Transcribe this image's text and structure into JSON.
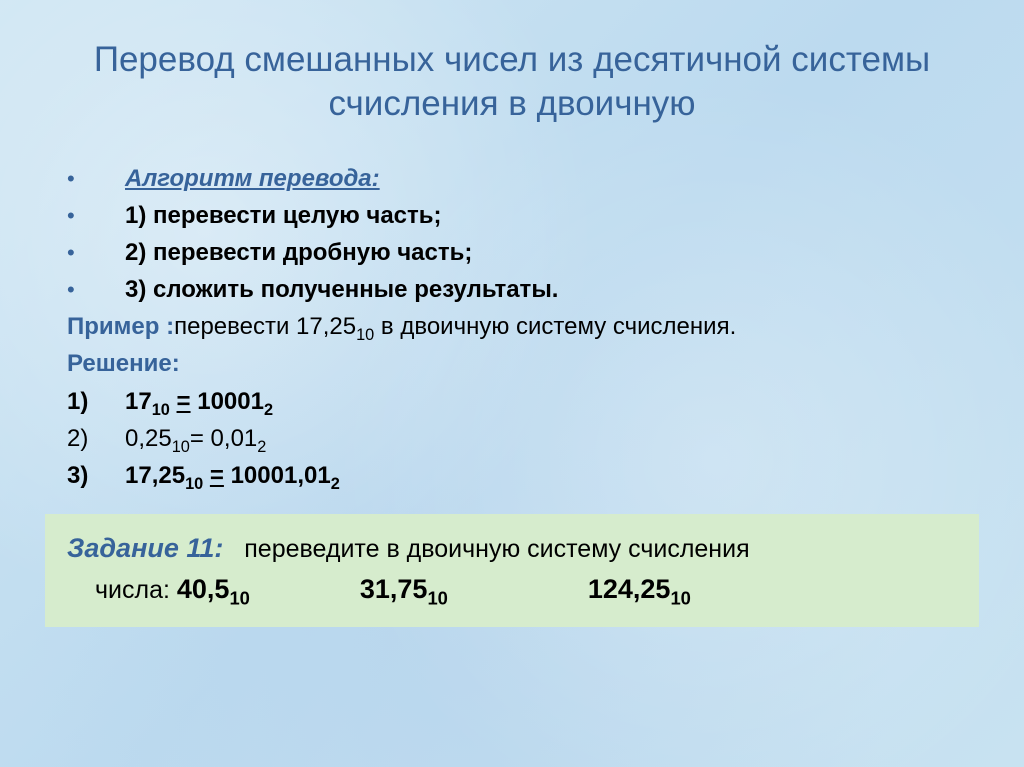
{
  "title": "Перевод смешанных чисел из десятичной системы счисления в двоичную",
  "algo": {
    "heading": "Алгоритм перевода:",
    "s1": "1) перевести целую часть;",
    "s2": "2) перевести дробную часть;",
    "s3": "3) сложить полученные результаты."
  },
  "example": {
    "label": "Пример :",
    "text_a": "перевести 17,25",
    "text_a_sub": "10",
    "text_b": " в двоичную систему счисления."
  },
  "solution": {
    "label": "Решение:",
    "rows": [
      {
        "idx": "1)",
        "bold": true,
        "lhs": "17",
        "lhs_sub": "10",
        "rhs": "10001",
        "rhs_sub": "2",
        "u": true
      },
      {
        "idx": "2)",
        "bold": false,
        "lhs": "0,25",
        "lhs_sub": "10",
        "rhs": "0,01",
        "rhs_sub": "2",
        "u": false
      },
      {
        "idx": "3)",
        "bold": true,
        "lhs": "17,25",
        "lhs_sub": "10",
        "rhs": "10001,01",
        "rhs_sub": "2",
        "u": true
      }
    ]
  },
  "task": {
    "label": "Задание 11:",
    "text1": "переведите  в двоичную  систему счисления",
    "text2_prefix": "числа: ",
    "nums": [
      {
        "v": "40,5",
        "sub": "10"
      },
      {
        "v": "31,75",
        "sub": "10"
      },
      {
        "v": "124,25",
        "sub": "10"
      }
    ]
  },
  "colors": {
    "heading": "#37639a",
    "task_bg": "#d6eccd",
    "page_bg": "#c3dff0",
    "text": "#000000"
  }
}
